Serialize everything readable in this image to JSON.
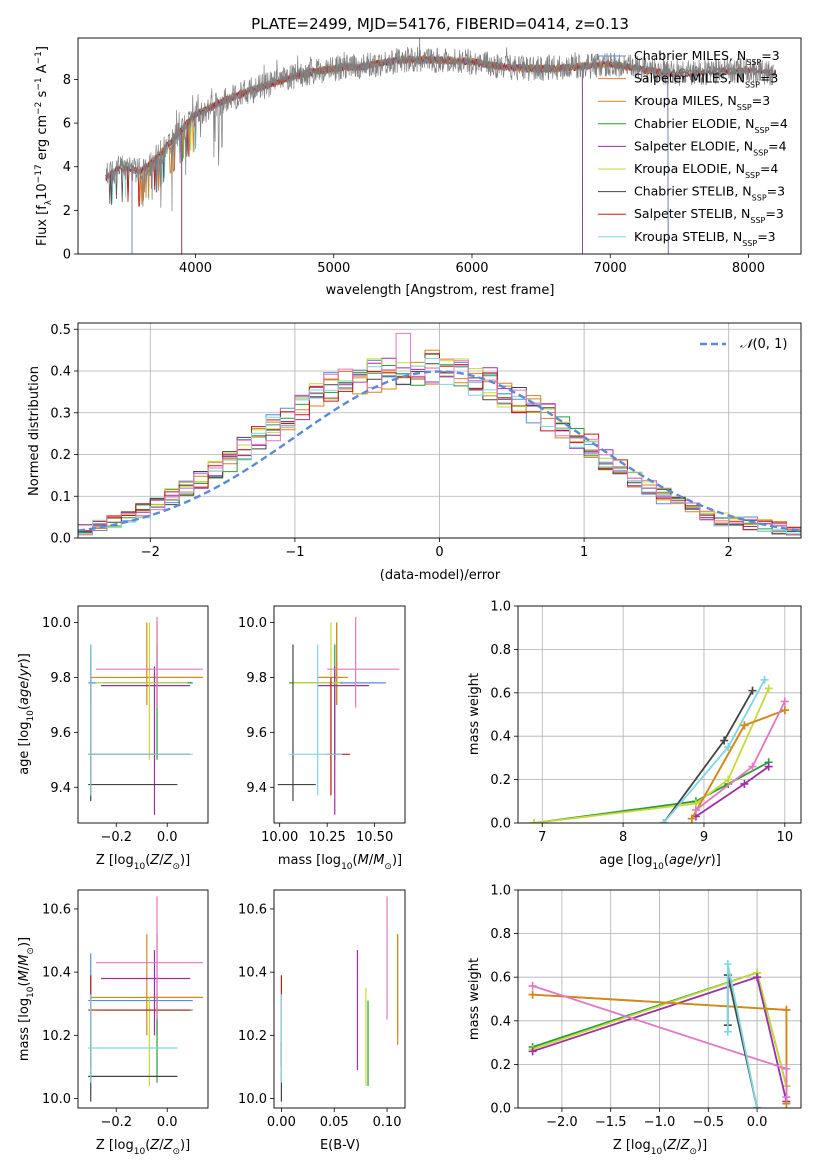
{
  "colors": {
    "Chabrier MILES": "#5b8bd6",
    "Salpeter MILES": "#e07b30",
    "Kroupa MILES": "#d08a1a",
    "Chabrier ELODIE": "#2a9c37",
    "Salpeter ELODIE": "#9c2fa8",
    "Kroupa ELODIE": "#c7d93a",
    "Chabrier STELIB": "#444444",
    "Salpeter STELIB": "#c01818",
    "Kroupa STELIB": "#7ed6e0",
    "pink": "#e377c2",
    "data": "#808080",
    "normal": "#5b8bd6"
  },
  "chart_data": [
    {
      "type": "line",
      "title": "PLATE=2499, MJD=54176, FIBERID=0414, z=0.13",
      "xlabel": "wavelength [Angstrom, rest frame]",
      "ylabel": "Flux [fλ10⁻¹⁷ erg cm⁻² s⁻¹ A⁻¹]",
      "xlim": [
        3150,
        8380
      ],
      "ylim": [
        0,
        9.9
      ],
      "xticks": [
        4000,
        5000,
        6000,
        7000,
        8000
      ],
      "yticks": [
        0,
        2,
        4,
        6,
        8
      ],
      "legend_position": "right",
      "legend": [
        {
          "label": "Chabrier MILES, N",
          "sub": "SSP",
          "tail": "=3",
          "key": "Chabrier MILES"
        },
        {
          "label": "Salpeter MILES, N",
          "sub": "SSP",
          "tail": "=3",
          "key": "Salpeter MILES"
        },
        {
          "label": "Kroupa MILES, N",
          "sub": "SSP",
          "tail": "=3",
          "key": "Kroupa MILES"
        },
        {
          "label": "Chabrier ELODIE, N",
          "sub": "SSP",
          "tail": "=4",
          "key": "Chabrier ELODIE"
        },
        {
          "label": "Salpeter ELODIE, N",
          "sub": "SSP",
          "tail": "=4",
          "key": "Salpeter ELODIE"
        },
        {
          "label": "Kroupa ELODIE, N",
          "sub": "SSP",
          "tail": "=4",
          "key": "Kroupa ELODIE"
        },
        {
          "label": "Chabrier STELIB, N",
          "sub": "SSP",
          "tail": "=3",
          "key": "Chabrier STELIB"
        },
        {
          "label": "Salpeter STELIB, N",
          "sub": "SSP",
          "tail": "=3",
          "key": "Salpeter STELIB"
        },
        {
          "label": "Kroupa STELIB, N",
          "sub": "SSP",
          "tail": "=3",
          "key": "Kroupa STELIB"
        }
      ],
      "continuum": [
        [
          3350,
          3.5
        ],
        [
          3450,
          4.0
        ],
        [
          3600,
          3.8
        ],
        [
          3700,
          4.3
        ],
        [
          3800,
          5.0
        ],
        [
          3900,
          5.7
        ],
        [
          4000,
          6.4
        ],
        [
          4200,
          7.0
        ],
        [
          4400,
          7.5
        ],
        [
          4600,
          7.9
        ],
        [
          4800,
          8.3
        ],
        [
          5000,
          8.5
        ],
        [
          5200,
          8.6
        ],
        [
          5500,
          8.9
        ],
        [
          5800,
          8.9
        ],
        [
          6000,
          8.8
        ],
        [
          6200,
          8.6
        ],
        [
          6400,
          8.5
        ],
        [
          6600,
          8.5
        ],
        [
          6800,
          8.6
        ],
        [
          7000,
          8.7
        ],
        [
          7200,
          8.5
        ],
        [
          7400,
          8.3
        ],
        [
          7600,
          8.3
        ],
        [
          7800,
          8.4
        ],
        [
          8000,
          8.4
        ],
        [
          8200,
          8.3
        ]
      ],
      "model_cutoffs": {
        "Salpeter MILES": [
          3540,
          7420
        ],
        "Kroupa MILES": [
          3540,
          7420
        ],
        "Chabrier MILES": [
          3540,
          7420
        ],
        "Chabrier ELODIE": [
          3900,
          6800
        ],
        "Salpeter ELODIE": [
          3900,
          6800
        ],
        "Kroupa ELODIE": [
          3900,
          6800
        ],
        "Chabrier STELIB": [
          3350,
          8200
        ],
        "Salpeter STELIB": [
          3350,
          8200
        ],
        "Kroupa STELIB": [
          3350,
          8200
        ]
      }
    },
    {
      "type": "histogram",
      "xlabel": "(data-model)/error",
      "ylabel": "Normed distribution",
      "xlim": [
        -2.5,
        2.5
      ],
      "ylim": [
        0,
        0.515
      ],
      "xticks": [
        -2,
        -1,
        0,
        1,
        2
      ],
      "yticks": [
        0.0,
        0.1,
        0.2,
        0.3,
        0.4,
        0.5
      ],
      "grid": true,
      "legend_position": "top-right",
      "legend": "N(0, 1)",
      "bin_edges_start": -2.6,
      "bin_width": 0.1,
      "base_density": [
        0.02,
        0.022,
        0.03,
        0.04,
        0.05,
        0.065,
        0.08,
        0.1,
        0.12,
        0.14,
        0.16,
        0.185,
        0.215,
        0.24,
        0.265,
        0.29,
        0.315,
        0.335,
        0.36,
        0.37,
        0.38,
        0.39,
        0.395,
        0.4,
        0.4,
        0.41,
        0.4,
        0.39,
        0.38,
        0.37,
        0.35,
        0.33,
        0.31,
        0.29,
        0.27,
        0.245,
        0.22,
        0.19,
        0.17,
        0.145,
        0.125,
        0.1,
        0.085,
        0.07,
        0.055,
        0.045,
        0.04,
        0.035,
        0.03,
        0.025,
        0.022,
        0.02
      ]
    },
    {
      "type": "errorbar",
      "xlabel": "Z [log10(Z/Z⊙)]",
      "ylabel": "age [log10(age/yr)]",
      "xlim": [
        -0.35,
        0.16
      ],
      "ylim": [
        9.27,
        10.06
      ],
      "xticks": [
        -0.2,
        0.0
      ],
      "yticks": [
        9.4,
        9.6,
        9.8,
        10.0
      ],
      "points": [
        {
          "k": "Chabrier MILES",
          "x": -0.3,
          "y": 9.78,
          "ex": [
            -0.31,
            0.1
          ],
          "ey": [
            9.7,
            9.88
          ]
        },
        {
          "k": "Salpeter MILES",
          "x": -0.04,
          "y": 9.8,
          "ex": [
            -0.1,
            0.14
          ],
          "ey": [
            9.7,
            10.0
          ]
        },
        {
          "k": "Kroupa MILES",
          "x": -0.08,
          "y": 9.8,
          "ex": [
            -0.3,
            0.14
          ],
          "ey": [
            9.7,
            10.0
          ]
        },
        {
          "k": "Chabrier ELODIE",
          "x": -0.04,
          "y": 9.78,
          "ex": [
            -0.25,
            0.1
          ],
          "ey": [
            9.5,
            9.92
          ]
        },
        {
          "k": "Salpeter ELODIE",
          "x": -0.05,
          "y": 9.77,
          "ex": [
            -0.26,
            0.09
          ],
          "ey": [
            9.3,
            9.84
          ]
        },
        {
          "k": "Kroupa ELODIE",
          "x": -0.07,
          "y": 9.78,
          "ex": [
            -0.28,
            0.08
          ],
          "ey": [
            9.5,
            10.0
          ]
        },
        {
          "k": "Chabrier STELIB",
          "x": -0.3,
          "y": 9.41,
          "ex": [
            -0.31,
            0.04
          ],
          "ey": [
            9.35,
            9.92
          ]
        },
        {
          "k": "Salpeter STELIB",
          "x": -0.3,
          "y": 9.52,
          "ex": [
            -0.31,
            0.09
          ],
          "ey": [
            9.37,
            9.8
          ]
        },
        {
          "k": "Kroupa STELIB",
          "x": -0.3,
          "y": 9.52,
          "ex": [
            -0.31,
            0.1
          ],
          "ey": [
            9.37,
            9.92
          ]
        },
        {
          "k": "pink",
          "x": -0.04,
          "y": 9.83,
          "ex": [
            -0.28,
            0.14
          ],
          "ey": [
            9.69,
            10.02
          ]
        }
      ]
    },
    {
      "type": "errorbar",
      "xlabel": "mass [log10(M/M⊙)]",
      "xlim": [
        9.97,
        10.66
      ],
      "ylim": [
        9.27,
        10.06
      ],
      "xticks": [
        10.0,
        10.25,
        10.5
      ],
      "yticks": [
        9.4,
        9.6,
        9.8,
        10.0
      ],
      "points": [
        {
          "k": "Chabrier MILES",
          "x": 10.3,
          "y": 9.78,
          "ex": [
            10.07,
            10.56
          ],
          "ey": [
            9.7,
            9.88
          ]
        },
        {
          "k": "Salpeter MILES",
          "x": 10.3,
          "y": 9.8,
          "ex": [
            10.2,
            10.36
          ],
          "ey": [
            9.7,
            10.0
          ]
        },
        {
          "k": "Kroupa MILES",
          "x": 10.3,
          "y": 9.8,
          "ex": [
            10.2,
            10.36
          ],
          "ey": [
            9.7,
            10.0
          ]
        },
        {
          "k": "Chabrier ELODIE",
          "x": 10.29,
          "y": 9.78,
          "ex": [
            10.05,
            10.33
          ],
          "ey": [
            9.5,
            9.92
          ]
        },
        {
          "k": "Salpeter ELODIE",
          "x": 10.29,
          "y": 9.77,
          "ex": [
            10.2,
            10.47
          ],
          "ey": [
            9.3,
            9.84
          ]
        },
        {
          "k": "Kroupa ELODIE",
          "x": 10.27,
          "y": 9.78,
          "ex": [
            10.07,
            10.32
          ],
          "ey": [
            9.5,
            10.0
          ]
        },
        {
          "k": "Chabrier STELIB",
          "x": 10.07,
          "y": 9.41,
          "ex": [
            9.99,
            10.19
          ],
          "ey": [
            9.35,
            9.92
          ]
        },
        {
          "k": "Salpeter STELIB",
          "x": 10.27,
          "y": 9.52,
          "ex": [
            10.25,
            10.37
          ],
          "ey": [
            9.37,
            9.8
          ]
        },
        {
          "k": "Kroupa STELIB",
          "x": 10.2,
          "y": 9.52,
          "ex": [
            10.05,
            10.33
          ],
          "ey": [
            9.37,
            9.92
          ]
        },
        {
          "k": "pink",
          "x": 10.4,
          "y": 9.83,
          "ex": [
            10.25,
            10.63
          ],
          "ey": [
            9.69,
            10.02
          ]
        }
      ]
    },
    {
      "type": "line",
      "xlabel": "age [log10(age/yr)]",
      "ylabel": "mass weight",
      "xlim": [
        6.7,
        10.2
      ],
      "ylim": [
        0,
        1.0
      ],
      "xticks": [
        7,
        8,
        9,
        10
      ],
      "yticks": [
        0.0,
        0.2,
        0.4,
        0.6,
        0.8,
        1.0
      ],
      "grid": true,
      "series": [
        {
          "k": "Chabrier ELODIE",
          "x": [
            6.9,
            8.9,
            9.3,
            9.8
          ],
          "y": [
            0.0,
            0.1,
            0.18,
            0.28
          ]
        },
        {
          "k": "Kroupa ELODIE",
          "x": [
            6.9,
            8.9,
            9.3,
            9.8
          ],
          "y": [
            0.0,
            0.09,
            0.2,
            0.62
          ]
        },
        {
          "k": "Salpeter ELODIE",
          "x": [
            8.9,
            9.5,
            9.8
          ],
          "y": [
            0.03,
            0.18,
            0.26
          ]
        },
        {
          "k": "Chabrier STELIB",
          "x": [
            8.5,
            9.25,
            9.6
          ],
          "y": [
            0.0,
            0.38,
            0.61
          ]
        },
        {
          "k": "Kroupa STELIB",
          "x": [
            8.5,
            9.3,
            9.75
          ],
          "y": [
            0.0,
            0.35,
            0.66
          ]
        },
        {
          "k": "Salpeter MILES",
          "x": [
            8.85,
            9.5,
            10.0
          ],
          "y": [
            0.02,
            0.45,
            0.52
          ]
        },
        {
          "k": "Kroupa MILES",
          "x": [
            8.85,
            9.5,
            10.0
          ],
          "y": [
            0.02,
            0.45,
            0.52
          ]
        },
        {
          "k": "pink",
          "x": [
            8.9,
            9.6,
            10.0
          ],
          "y": [
            0.06,
            0.26,
            0.56
          ]
        }
      ]
    },
    {
      "type": "errorbar",
      "xlabel": "Z [log10(Z/Z⊙)]",
      "ylabel": "mass [log10(M/M⊙)]",
      "xlim": [
        -0.35,
        0.16
      ],
      "ylim": [
        9.97,
        10.66
      ],
      "xticks": [
        -0.2,
        0.0
      ],
      "yticks": [
        10.0,
        10.2,
        10.4,
        10.6
      ],
      "points": [
        {
          "k": "Chabrier MILES",
          "x": -0.3,
          "y": 10.31,
          "ex": [
            -0.31,
            0.1
          ],
          "ey": [
            10.15,
            10.46
          ]
        },
        {
          "k": "Salpeter MILES",
          "x": -0.04,
          "y": 10.32,
          "ex": [
            -0.1,
            0.14
          ],
          "ey": [
            10.2,
            10.52
          ]
        },
        {
          "k": "Kroupa MILES",
          "x": -0.08,
          "y": 10.32,
          "ex": [
            -0.3,
            0.14
          ],
          "ey": [
            10.2,
            10.52
          ]
        },
        {
          "k": "Chabrier ELODIE",
          "x": -0.04,
          "y": 10.28,
          "ex": [
            -0.25,
            0.1
          ],
          "ey": [
            10.05,
            10.33
          ]
        },
        {
          "k": "Salpeter ELODIE",
          "x": -0.05,
          "y": 10.38,
          "ex": [
            -0.26,
            0.09
          ],
          "ey": [
            10.2,
            10.47
          ]
        },
        {
          "k": "Kroupa ELODIE",
          "x": -0.07,
          "y": 10.28,
          "ex": [
            -0.28,
            0.08
          ],
          "ey": [
            10.04,
            10.32
          ]
        },
        {
          "k": "Chabrier STELIB",
          "x": -0.3,
          "y": 10.07,
          "ex": [
            -0.31,
            0.04
          ],
          "ey": [
            9.99,
            10.18
          ]
        },
        {
          "k": "Salpeter STELIB",
          "x": -0.3,
          "y": 10.28,
          "ex": [
            -0.31,
            0.09
          ],
          "ey": [
            10.1,
            10.39
          ]
        },
        {
          "k": "Kroupa STELIB",
          "x": -0.3,
          "y": 10.16,
          "ex": [
            -0.31,
            0.04
          ],
          "ey": [
            10.05,
            10.33
          ]
        },
        {
          "k": "pink",
          "x": -0.04,
          "y": 10.43,
          "ex": [
            -0.28,
            0.14
          ],
          "ey": [
            10.25,
            10.64
          ]
        }
      ]
    },
    {
      "type": "errorbar",
      "xlabel": "E(B-V)",
      "xlim": [
        -0.007,
        0.117
      ],
      "ylim": [
        9.97,
        10.66
      ],
      "xticks": [
        0.0,
        0.05,
        0.1
      ],
      "yticks": [
        10.0,
        10.2,
        10.4,
        10.6
      ],
      "points": [
        {
          "k": "Salpeter MILES",
          "x": 0.11,
          "y": 10.32,
          "ey": [
            10.2,
            10.52
          ]
        },
        {
          "k": "Kroupa MILES",
          "x": 0.11,
          "y": 10.32,
          "ey": [
            10.17,
            10.52
          ]
        },
        {
          "k": "Chabrier ELODIE",
          "x": 0.082,
          "y": 10.18,
          "ey": [
            10.04,
            10.31
          ]
        },
        {
          "k": "Salpeter ELODIE",
          "x": 0.072,
          "y": 10.28,
          "ey": [
            10.09,
            10.47
          ]
        },
        {
          "k": "Kroupa ELODIE",
          "x": 0.08,
          "y": 10.2,
          "ey": [
            10.04,
            10.35
          ]
        },
        {
          "k": "Chabrier STELIB",
          "x": 0.0,
          "y": 10.07,
          "ey": [
            9.99,
            10.18
          ]
        },
        {
          "k": "Salpeter STELIB",
          "x": 0.0,
          "y": 10.28,
          "ey": [
            10.1,
            10.39
          ]
        },
        {
          "k": "Kroupa STELIB",
          "x": 0.0,
          "y": 10.16,
          "ey": [
            10.05,
            10.33
          ]
        },
        {
          "k": "pink",
          "x": 0.1,
          "y": 10.43,
          "ey": [
            10.25,
            10.64
          ]
        }
      ]
    },
    {
      "type": "line",
      "xlabel": "Z [log10(Z/Z⊙)]",
      "ylabel": "mass weight",
      "xlim": [
        -2.45,
        0.45
      ],
      "ylim": [
        0,
        1.0
      ],
      "xticks": [
        -2.0,
        -1.5,
        -1.0,
        -0.5,
        0.0
      ],
      "yticks": [
        0.0,
        0.2,
        0.4,
        0.6,
        0.8,
        1.0
      ],
      "grid": true,
      "series": [
        {
          "k": "Chabrier ELODIE",
          "x": [
            -2.3,
            0.0,
            0.3
          ],
          "y": [
            0.28,
            0.62,
            0.1
          ]
        },
        {
          "k": "Kroupa ELODIE",
          "x": [
            -2.3,
            0.0,
            0.3
          ],
          "y": [
            0.27,
            0.62,
            0.1
          ]
        },
        {
          "k": "Salpeter ELODIE",
          "x": [
            -2.3,
            0.0,
            0.3
          ],
          "y": [
            0.26,
            0.6,
            0.03
          ]
        },
        {
          "k": "Salpeter MILES",
          "x": [
            -2.3,
            0.3,
            0.3
          ],
          "y": [
            0.52,
            0.45,
            0.02
          ]
        },
        {
          "k": "Kroupa MILES",
          "x": [
            -2.3,
            0.3,
            0.3
          ],
          "y": [
            0.52,
            0.45,
            0.02
          ]
        },
        {
          "k": "pink",
          "x": [
            -2.3,
            0.3,
            0.3
          ],
          "y": [
            0.56,
            0.18,
            0.05
          ]
        },
        {
          "k": "Chabrier STELIB",
          "x": [
            -0.3,
            -0.3,
            0.0
          ],
          "y": [
            0.38,
            0.61,
            0.0
          ]
        },
        {
          "k": "Kroupa STELIB",
          "x": [
            -0.3,
            -0.3,
            0.0
          ],
          "y": [
            0.35,
            0.66,
            0.0
          ]
        }
      ]
    }
  ]
}
